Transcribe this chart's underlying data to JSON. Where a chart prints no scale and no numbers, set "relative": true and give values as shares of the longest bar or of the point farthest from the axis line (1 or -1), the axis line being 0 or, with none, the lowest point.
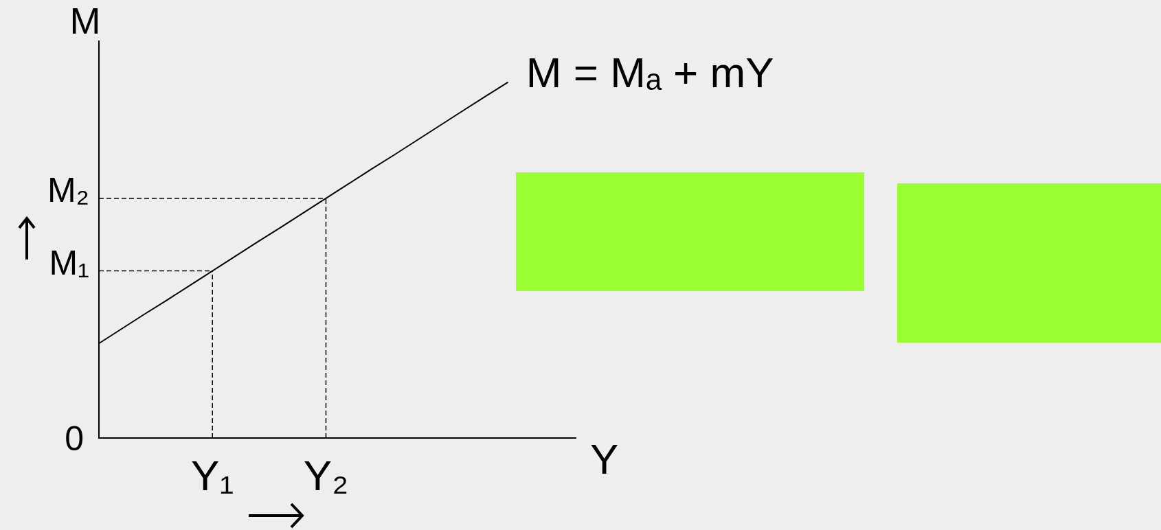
{
  "chart_data": {
    "type": "line",
    "xlabel": "Y",
    "ylabel": "M",
    "relative": true,
    "marker": "none",
    "categories": [
      null,
      null,
      null,
      null,
      null,
      "Y₁",
      null,
      null,
      null,
      null,
      "Y₂",
      null,
      null,
      null,
      null,
      null,
      null,
      null,
      null,
      null,
      null,
      null
    ],
    "series": [
      {
        "name": "M = Mₐ + mY",
        "color": "#000000",
        "values": [
          0.266,
          0.307,
          0.348,
          0.388,
          0.429,
          0.47,
          0.511,
          0.552,
          0.592,
          0.633,
          0.674,
          0.715,
          0.756,
          0.796,
          0.837,
          0.878,
          0.919,
          0.96,
          1,
          null,
          null,
          null
        ]
      }
    ],
    "ref_lines": [
      {
        "axis": "y",
        "value": 0.47,
        "label": "M₁",
        "line_style": "dashed"
      },
      {
        "axis": "y",
        "value": 0.674,
        "label": "M₂",
        "line_style": "dashed"
      },
      {
        "axis": "x",
        "value": "Y₁",
        "line_style": "dashed"
      },
      {
        "axis": "x",
        "value": "Y₂",
        "line_style": "dashed"
      }
    ],
    "annotations": [
      "0"
    ]
  }
}
